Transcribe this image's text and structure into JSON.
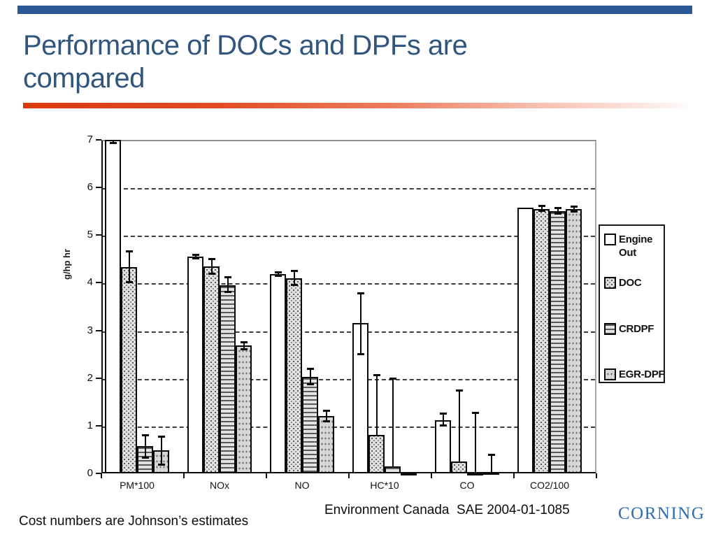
{
  "slide": {
    "title": "Performance of DOCs and DPFs are compared",
    "footer_note": "Cost numbers are Johnson’s estimates",
    "source_citation": "Environment Canada  SAE 2004-01-1085",
    "logo_text": "CORNING"
  },
  "colors": {
    "top_bar": "#2b5796",
    "title_text": "#30567e",
    "rule_red": "#e24a22",
    "logo_blue": "#2e6cb3"
  },
  "chart_data": {
    "type": "bar",
    "title": "",
    "xlabel": "",
    "ylabel": "g/hp hr",
    "ylim": [
      0,
      7
    ],
    "yticks": [
      0,
      1,
      2,
      3,
      4,
      5,
      6,
      7
    ],
    "grid": "horizontal dashed at 1-6, solid top border at 7",
    "legend_position": "right",
    "error_bars": true,
    "categories": [
      "PM*100",
      "NOx",
      "NO",
      "HC*10",
      "CO",
      "CO2/100"
    ],
    "series": [
      {
        "name": "Engine Out",
        "pattern": "white",
        "values": [
          7.0,
          4.55,
          4.18,
          3.15,
          1.12,
          5.57
        ],
        "err_low": [
          6.93,
          4.5,
          4.14,
          2.5,
          1.0,
          5.57
        ],
        "err_high": [
          7.0,
          4.6,
          4.22,
          3.78,
          1.26,
          5.57
        ]
      },
      {
        "name": "DOC",
        "pattern": "dot-grid",
        "values": [
          4.33,
          4.35,
          4.1,
          0.8,
          0.25,
          5.55
        ],
        "err_low": [
          4.0,
          4.18,
          3.95,
          0.8,
          0.25,
          5.5
        ],
        "err_high": [
          4.67,
          4.5,
          4.25,
          2.07,
          1.75,
          5.62
        ]
      },
      {
        "name": "CRDPF",
        "pattern": "h-lines",
        "values": [
          0.57,
          3.95,
          2.03,
          0.15,
          0.02,
          5.5
        ],
        "err_low": [
          0.33,
          3.8,
          1.86,
          0.15,
          0.02,
          5.44
        ],
        "err_high": [
          0.8,
          4.12,
          2.2,
          2.0,
          1.27,
          5.57
        ]
      },
      {
        "name": "EGR-DPF",
        "pattern": "dots",
        "values": [
          0.48,
          2.68,
          1.2,
          0.01,
          0.03,
          5.55
        ],
        "err_low": [
          0.18,
          2.6,
          1.08,
          0.01,
          0.03,
          5.49
        ],
        "err_high": [
          0.78,
          2.76,
          1.32,
          0.01,
          0.4,
          5.6
        ]
      }
    ]
  }
}
